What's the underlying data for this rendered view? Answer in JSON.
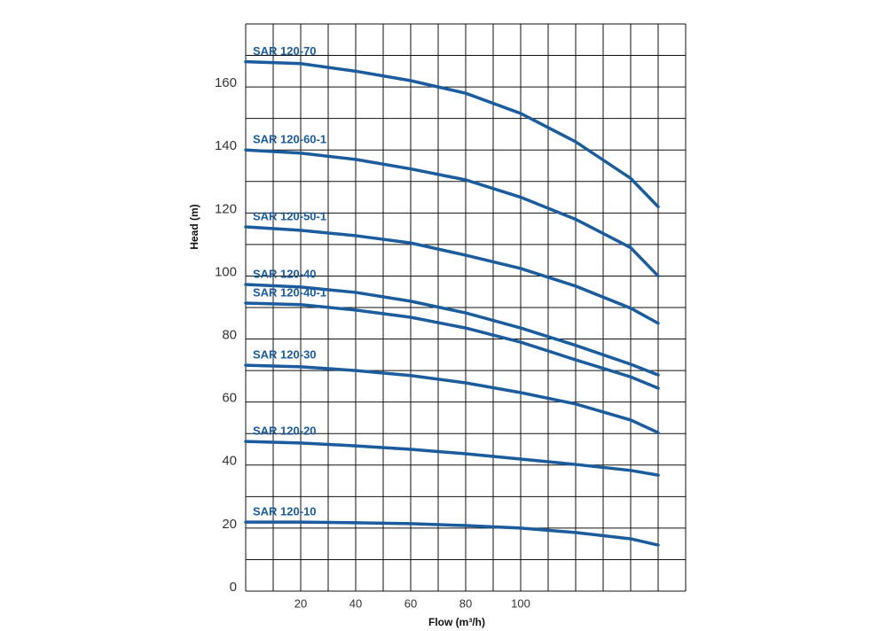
{
  "chart_data": {
    "type": "line",
    "x_label": "Flow (m³/h)",
    "y_label": "Head (m)",
    "xlim": [
      0,
      160
    ],
    "ylim": [
      0,
      180
    ],
    "xticks": [
      20,
      40,
      60,
      80,
      100
    ],
    "yticks": [
      0,
      20,
      40,
      60,
      80,
      100,
      120,
      140,
      160
    ],
    "xgrid": [
      0,
      10,
      20,
      30,
      40,
      50,
      60,
      70,
      80,
      90,
      100,
      110,
      120,
      130,
      140,
      150,
      160
    ],
    "ygrid": [
      0,
      10,
      20,
      30,
      40,
      50,
      60,
      70,
      80,
      90,
      100,
      110,
      120,
      130,
      140,
      150,
      160,
      170,
      180
    ],
    "grid": true,
    "x": [
      0,
      20,
      40,
      60,
      80,
      100,
      120,
      140,
      150
    ],
    "series": [
      {
        "name": "SAR 120-70",
        "color": "#1a5c9e",
        "values": [
          168,
          167.4,
          165,
          162,
          158,
          151.6,
          142.6,
          131,
          122
        ]
      },
      {
        "name": "SAR 120-60-1",
        "color": "#1a5c9e",
        "values": [
          140,
          139,
          137,
          134,
          130.5,
          125,
          118,
          109,
          100
        ]
      },
      {
        "name": "SAR 120-50-1",
        "color": "#1a5c9e",
        "values": [
          115.6,
          114.5,
          112.8,
          110.5,
          106.6,
          102.4,
          96.8,
          89.8,
          85
        ]
      },
      {
        "name": "SAR 120-40",
        "color": "#1a5c9e",
        "values": [
          97.3,
          96.5,
          94.8,
          92,
          88.3,
          83.5,
          78,
          72,
          68.6
        ]
      },
      {
        "name": "SAR 120-40-1",
        "color": "#1a5c9e",
        "values": [
          91.4,
          90.9,
          89.2,
          86.9,
          83.5,
          79,
          73.4,
          68,
          64.4
        ]
      },
      {
        "name": "SAR 120-30",
        "color": "#1a5c9e",
        "values": [
          71.7,
          71.2,
          70,
          68.4,
          66.1,
          63,
          59.4,
          54.3,
          50.3
        ]
      },
      {
        "name": "SAR 120-20",
        "color": "#1a5c9e",
        "values": [
          47.5,
          47,
          46.1,
          45,
          43.6,
          41.9,
          40.2,
          38.3,
          36.8
        ]
      },
      {
        "name": "SAR 120-10",
        "color": "#1a5c9e",
        "values": [
          21.9,
          21.9,
          21.7,
          21.4,
          20.8,
          20,
          18.6,
          16.6,
          14.6
        ]
      }
    ]
  }
}
